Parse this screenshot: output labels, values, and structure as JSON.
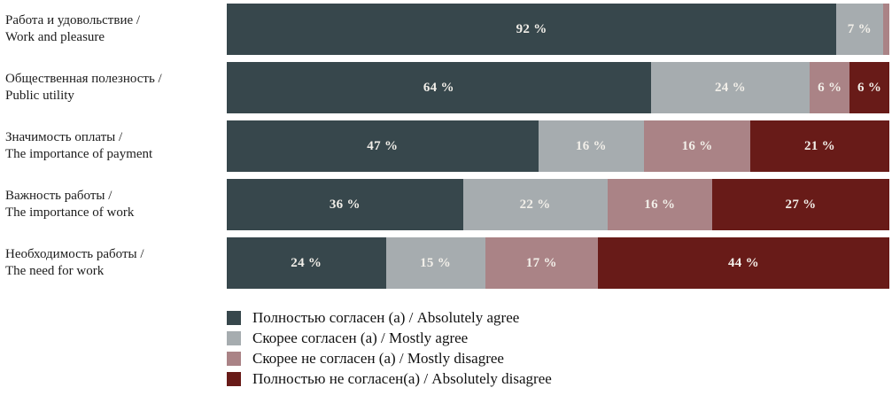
{
  "chart_data": {
    "type": "bar",
    "orientation": "horizontal",
    "stacked": true,
    "unit": "%",
    "grid": false,
    "legend_position": "bottom",
    "bar_label_color": "#F2EFE9",
    "categories": [
      "Работа и удовольствие / Work and pleasure",
      "Общественная полезность / Public utility",
      "Значимость оплаты / The importance of payment",
      "Важность работы / The importance of work",
      "Необходимость работы / The need for work"
    ],
    "category_lines": [
      [
        "Работа и удовольствие /",
        "Work and pleasure"
      ],
      [
        "Общественная полезность /",
        "Public utility"
      ],
      [
        "Значимость оплаты /",
        "The importance of payment"
      ],
      [
        "Важность работы /",
        "The importance of work"
      ],
      [
        "Необходимость работы /",
        "The need for work"
      ]
    ],
    "series": [
      {
        "name": "Полностью согласен (а) / Absolutely agree",
        "color": "#37474C",
        "values": [
          92,
          64,
          47,
          36,
          24
        ]
      },
      {
        "name": "Скорее согласен (а) / Mostly agree",
        "color": "#A6ACAF",
        "values": [
          7,
          24,
          16,
          22,
          15
        ]
      },
      {
        "name": "Скорее не согласен (а) / Mostly disagree",
        "color": "#AA8386",
        "values": [
          1,
          6,
          16,
          16,
          17
        ]
      },
      {
        "name": "Полностью не согласен(а) / Absolutely disagree",
        "color": "#681B18",
        "values": [
          0,
          6,
          21,
          27,
          44
        ]
      }
    ],
    "value_labels": [
      [
        "92 %",
        "7 %",
        "",
        ""
      ],
      [
        "64 %",
        "24 %",
        "6 %",
        "6 %"
      ],
      [
        "47 %",
        "16 %",
        "16 %",
        "21 %"
      ],
      [
        "36 %",
        "22 %",
        "16 %",
        "27 %"
      ],
      [
        "24 %",
        "15 %",
        "17 %",
        "44 %"
      ]
    ],
    "legend": [
      {
        "label": "Полностью согласен (а) / Absolutely agree",
        "color": "#37474C"
      },
      {
        "label": "Скорее согласен (а) / Mostly agree",
        "color": "#A6ACAF"
      },
      {
        "label": "Скорее не согласен (а) / Mostly disagree",
        "color": "#AA8386"
      },
      {
        "label": "Полностью не согласен(а) / Absolutely disagree",
        "color": "#681B18"
      }
    ]
  }
}
